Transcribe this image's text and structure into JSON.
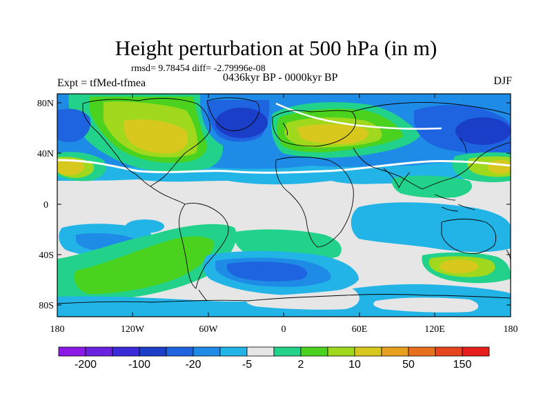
{
  "title": "Height perturbation at 500 hPa (in m)",
  "stats_line": "rmsd= 9.78454 diff= -2.79996e-08",
  "left_label": "Expt = tfMed-tfmea",
  "center_label": "0436kyr BP - 0000kyr BP",
  "right_label": "DJF",
  "colors": {
    "background": "#e6e6e6",
    "colorbar": [
      "#8b1ae6",
      "#6a22e0",
      "#3a2ad8",
      "#1a3ec8",
      "#1e64e0",
      "#1e8ce6",
      "#22b4e6",
      "#e6e6e6",
      "#22d28a",
      "#4ad21e",
      "#a0d81e",
      "#d8c81e",
      "#e6a01e",
      "#e6701e",
      "#e6461e",
      "#e61e1e"
    ]
  },
  "map": {
    "lat_ticks": [
      "80N",
      "40N",
      "0",
      "40S",
      "80S"
    ],
    "lon_ticks": [
      "180",
      "120W",
      "60W",
      "0",
      "60E",
      "120E",
      "180"
    ]
  },
  "colorbar_labels": [
    "-200",
    "-100",
    "-20",
    "-5",
    "2",
    "10",
    "50",
    "150"
  ]
}
